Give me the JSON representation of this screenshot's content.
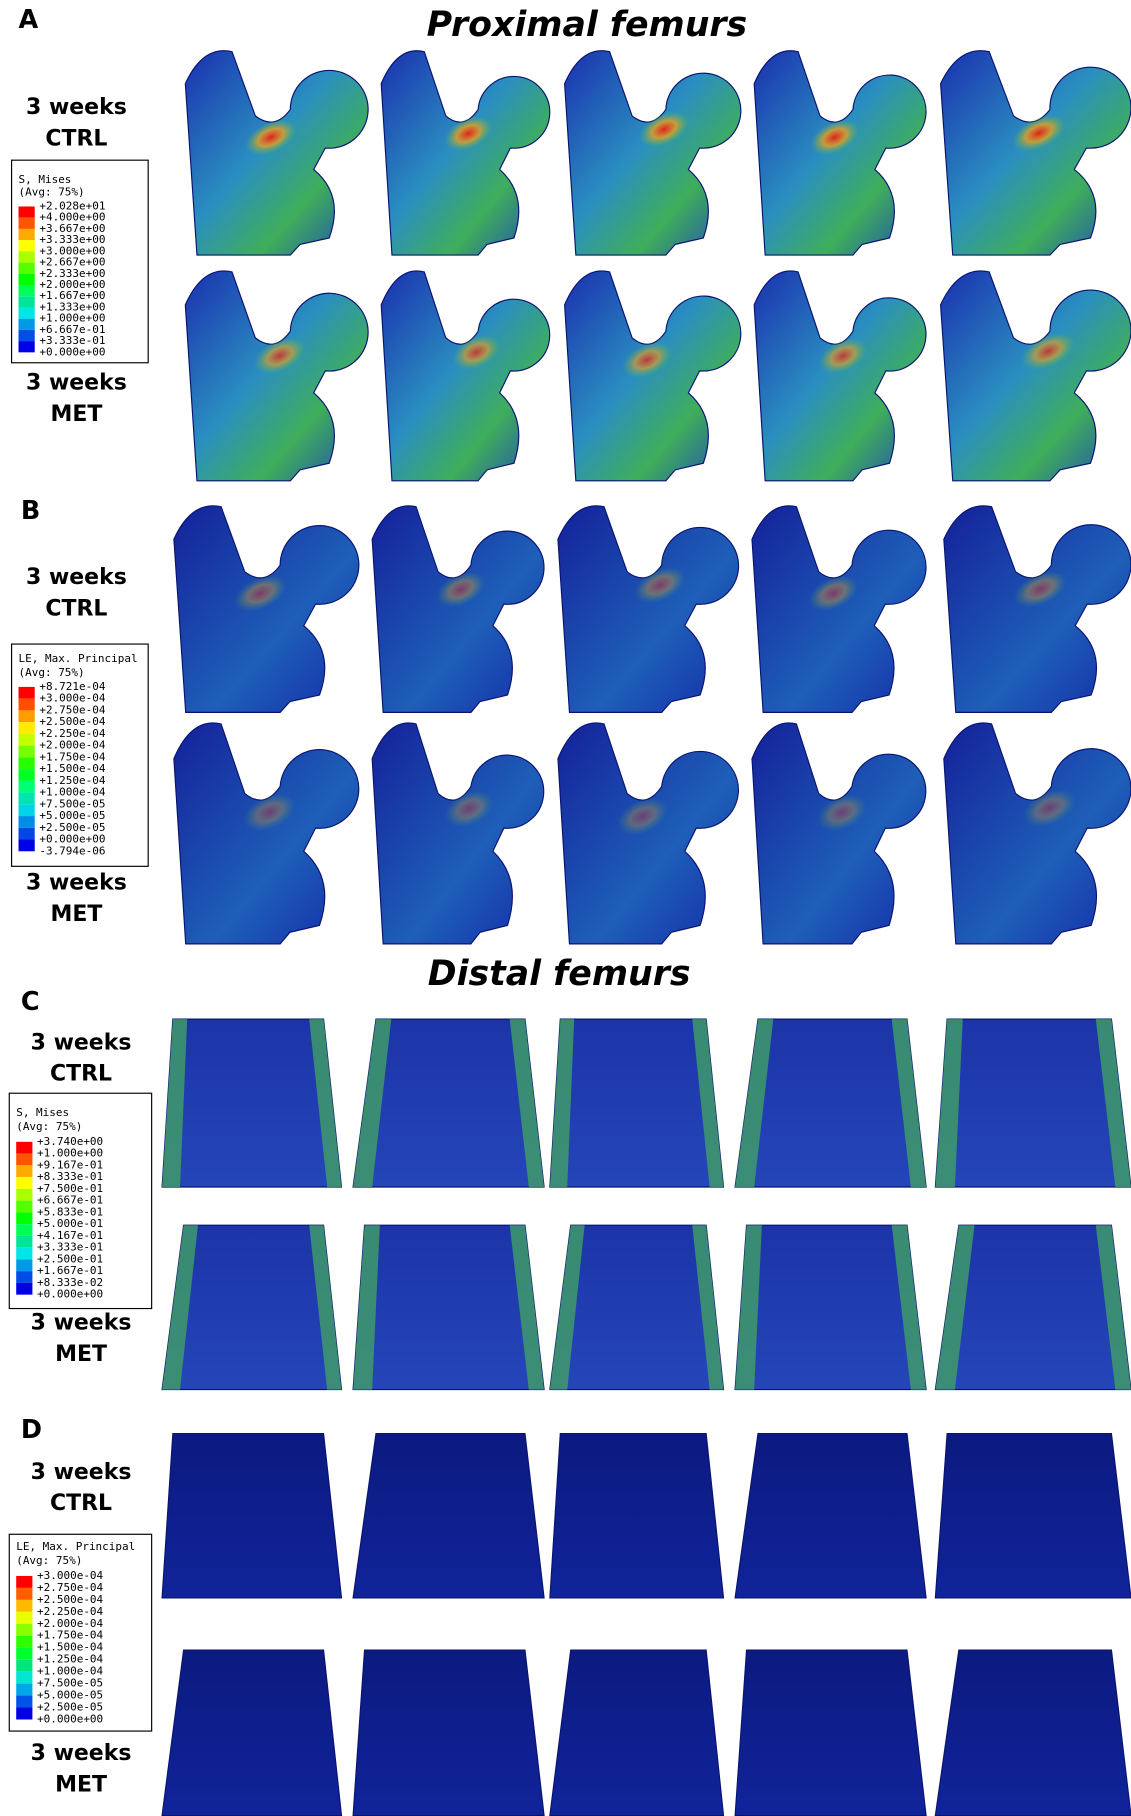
{
  "sections": [
    {
      "title": "Proximal femurs",
      "panels": [
        {
          "letter": "A",
          "rows": [
            [
              "3 weeks",
              "CTRL"
            ],
            [
              "3 weeks",
              "MET"
            ]
          ],
          "legend": {
            "title": [
              "S, Mises",
              "(Avg: 75%)"
            ],
            "labels": [
              "+2.028e+01",
              "+4.000e+00",
              "+3.667e+00",
              "+3.333e+00",
              "+3.000e+00",
              "+2.667e+00",
              "+2.333e+00",
              "+2.000e+00",
              "+1.667e+00",
              "+1.333e+00",
              "+1.000e+00",
              "+6.667e-01",
              "+3.333e-01",
              "+0.000e+00"
            ]
          }
        },
        {
          "letter": "B",
          "rows": [
            [
              "3 weeks",
              "CTRL"
            ],
            [
              "3 weeks",
              "MET"
            ]
          ],
          "legend": {
            "title": [
              "LE, Max. Principal",
              "(Avg: 75%)"
            ],
            "labels": [
              "+8.721e-04",
              "+3.000e-04",
              "+2.750e-04",
              "+2.500e-04",
              "+2.250e-04",
              "+2.000e-04",
              "+1.750e-04",
              "+1.500e-04",
              "+1.250e-04",
              "+1.000e-04",
              "+7.500e-05",
              "+5.000e-05",
              "+2.500e-05",
              "+0.000e+00",
              "-3.794e-06"
            ]
          }
        }
      ]
    },
    {
      "title": "Distal femurs",
      "panels": [
        {
          "letter": "C",
          "rows": [
            [
              "3 weeks",
              "CTRL"
            ],
            [
              "3 weeks",
              "MET"
            ]
          ],
          "legend": {
            "title": [
              "S, Mises",
              "(Avg: 75%)"
            ],
            "labels": [
              "+3.740e+00",
              "+1.000e+00",
              "+9.167e-01",
              "+8.333e-01",
              "+7.500e-01",
              "+6.667e-01",
              "+5.833e-01",
              "+5.000e-01",
              "+4.167e-01",
              "+3.333e-01",
              "+2.500e-01",
              "+1.667e-01",
              "+8.333e-02",
              "+0.000e+00"
            ]
          }
        },
        {
          "letter": "D",
          "rows": [
            [
              "3 weeks",
              "CTRL"
            ],
            [
              "3 weeks",
              "MET"
            ]
          ],
          "legend": {
            "title": [
              "LE, Max. Principal",
              "(Avg: 75%)"
            ],
            "labels": [
              "+3.000e-04",
              "+2.750e-04",
              "+2.500e-04",
              "+2.250e-04",
              "+2.000e-04",
              "+1.750e-04",
              "+1.500e-04",
              "+1.250e-04",
              "+1.000e-04",
              "+7.500e-05",
              "+5.000e-05",
              "+2.500e-05",
              "+0.000e+00"
            ]
          }
        }
      ]
    }
  ]
}
